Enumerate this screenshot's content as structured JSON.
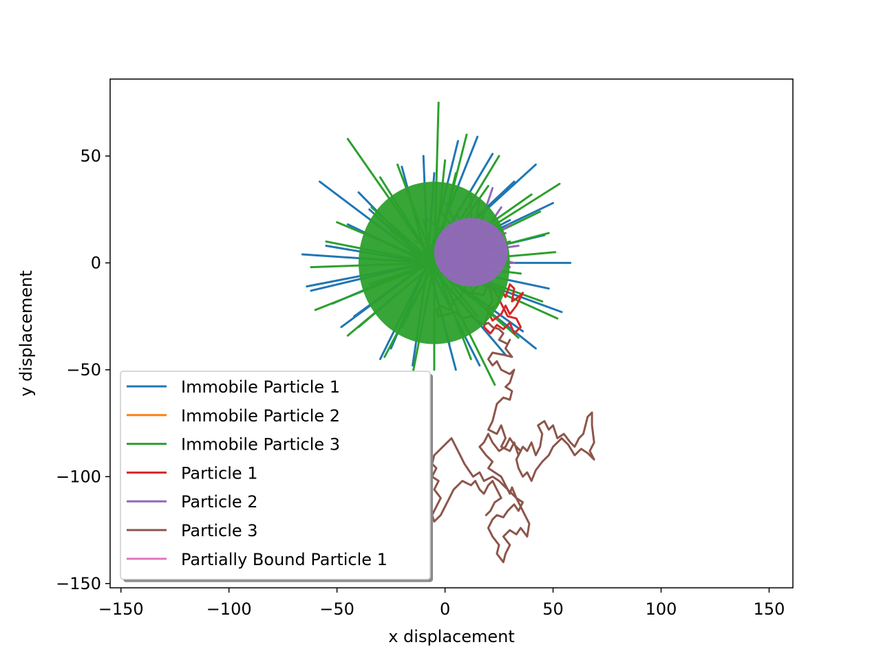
{
  "chart_data": {
    "type": "line",
    "title": "",
    "xlabel": "x displacement",
    "ylabel": "y displacement",
    "xlim": [
      -155,
      161
    ],
    "ylim": [
      -152,
      86
    ],
    "xticks": [
      -150,
      -100,
      -50,
      0,
      50,
      100,
      150
    ],
    "yticks": [
      50,
      0,
      -50,
      -100,
      -150
    ],
    "xtick_labels": [
      "−150",
      "−100",
      "−50",
      "0",
      "50",
      "100",
      "150"
    ],
    "ytick_labels": [
      "50",
      "0",
      "−50",
      "−100",
      "−150"
    ],
    "legend_position": "lower-left",
    "grid": false,
    "series": [
      {
        "name": "Immobile Particle 1",
        "color": "#1f77b4",
        "style": "spikes",
        "center": [
          -8,
          0
        ],
        "tips": [
          [
            -58,
            38
          ],
          [
            -64,
            -11
          ],
          [
            -66,
            4
          ],
          [
            -62,
            -13
          ],
          [
            -35,
            25
          ],
          [
            -45,
            18
          ],
          [
            6,
            57
          ],
          [
            15,
            59
          ],
          [
            42,
            46
          ],
          [
            50,
            28
          ],
          [
            58,
            0
          ],
          [
            54,
            -23
          ],
          [
            42,
            -40
          ],
          [
            28,
            -43
          ],
          [
            5,
            -50
          ],
          [
            -15,
            -48
          ],
          [
            -30,
            -45
          ],
          [
            -48,
            -30
          ],
          [
            -52,
            -19
          ],
          [
            -40,
            33
          ],
          [
            -20,
            45
          ],
          [
            22,
            51
          ],
          [
            32,
            38
          ],
          [
            46,
            13
          ],
          [
            36,
            -32
          ],
          [
            -10,
            50
          ],
          [
            -55,
            8
          ],
          [
            -25,
            -40
          ],
          [
            16,
            -48
          ],
          [
            48,
            -12
          ],
          [
            -5,
            42
          ],
          [
            30,
            20
          ],
          [
            -42,
            -25
          ],
          [
            2,
            -38
          ]
        ]
      },
      {
        "name": "Immobile Particle 2",
        "color": "#ff7f0e",
        "style": "line",
        "points": [
          [
            1,
            7
          ],
          [
            1,
            7
          ]
        ]
      },
      {
        "name": "Immobile Particle 3",
        "color": "#2ca02c",
        "style": "spikes",
        "center": [
          -5,
          0
        ],
        "tips": [
          [
            -3,
            75
          ],
          [
            -45,
            58
          ],
          [
            53,
            37
          ],
          [
            44,
            24
          ],
          [
            52,
            -26
          ],
          [
            34,
            -35
          ],
          [
            23,
            -57
          ],
          [
            -5,
            -50
          ],
          [
            -28,
            -44
          ],
          [
            -45,
            -34
          ],
          [
            -60,
            -22
          ],
          [
            -62,
            -2
          ],
          [
            -50,
            19
          ],
          [
            -34,
            26
          ],
          [
            -22,
            46
          ],
          [
            10,
            60
          ],
          [
            25,
            50
          ],
          [
            40,
            32
          ],
          [
            48,
            14
          ],
          [
            51,
            5
          ],
          [
            45,
            -18
          ],
          [
            12,
            -45
          ],
          [
            -15,
            -52
          ],
          [
            -40,
            -30
          ],
          [
            -55,
            10
          ],
          [
            -30,
            40
          ],
          [
            0,
            48
          ],
          [
            20,
            36
          ],
          [
            35,
            -5
          ],
          [
            -20,
            -30
          ],
          [
            15,
            -25
          ],
          [
            -10,
            20
          ],
          [
            30,
            10
          ],
          [
            -35,
            -10
          ],
          [
            5,
            42
          ],
          [
            -25,
            15
          ],
          [
            28,
            -30
          ]
        ]
      },
      {
        "name": "Particle 1",
        "color": "#d62728",
        "style": "line",
        "points": [
          [
            10,
            3
          ],
          [
            12,
            -5
          ],
          [
            14,
            -2
          ],
          [
            16,
            -10
          ],
          [
            12,
            -14
          ],
          [
            18,
            -15
          ],
          [
            20,
            -9
          ],
          [
            22,
            -18
          ],
          [
            19,
            -22
          ],
          [
            24,
            -20
          ],
          [
            26,
            -13
          ],
          [
            28,
            -16
          ],
          [
            30,
            -10
          ],
          [
            32,
            -12
          ],
          [
            31,
            -18
          ],
          [
            34,
            -16
          ],
          [
            36,
            -14
          ],
          [
            33,
            -20
          ],
          [
            30,
            -24
          ],
          [
            28,
            -20
          ],
          [
            26,
            -24
          ],
          [
            22,
            -27
          ],
          [
            20,
            -23
          ],
          [
            18,
            -30
          ],
          [
            21,
            -33
          ],
          [
            24,
            -29
          ],
          [
            27,
            -31
          ],
          [
            30,
            -28
          ],
          [
            32,
            -33
          ],
          [
            35,
            -30
          ],
          [
            33,
            -26
          ],
          [
            29,
            -25
          ],
          [
            27,
            -21
          ],
          [
            24,
            -15
          ],
          [
            22,
            -11
          ],
          [
            19,
            -7
          ],
          [
            16,
            -4
          ],
          [
            14,
            1
          ],
          [
            11,
            5
          ]
        ]
      },
      {
        "name": "Particle 2",
        "color": "#9467bd",
        "style": "spikes",
        "center": [
          12,
          5
        ],
        "tips": [
          [
            22,
            35
          ],
          [
            12,
            32
          ],
          [
            0,
            28
          ],
          [
            -8,
            20
          ],
          [
            -14,
            10
          ],
          [
            -12,
            0
          ],
          [
            -6,
            -8
          ],
          [
            2,
            -14
          ],
          [
            12,
            -12
          ],
          [
            22,
            -10
          ],
          [
            30,
            -2
          ],
          [
            34,
            8
          ],
          [
            30,
            18
          ],
          [
            26,
            26
          ],
          [
            18,
            24
          ],
          [
            6,
            22
          ],
          [
            -4,
            14
          ],
          [
            28,
            14
          ],
          [
            20,
            -8
          ],
          [
            -10,
            6
          ],
          [
            16,
            30
          ],
          [
            4,
            -10
          ],
          [
            32,
            0
          ],
          [
            -2,
            24
          ]
        ]
      },
      {
        "name": "Particle 3",
        "color": "#8c564b",
        "style": "line",
        "points": [
          [
            10,
            5
          ],
          [
            11,
            0
          ],
          [
            10,
            -4
          ],
          [
            12,
            -8
          ],
          [
            9,
            -12
          ],
          [
            7,
            -16
          ],
          [
            4,
            -18
          ],
          [
            2,
            -22
          ],
          [
            -2,
            -20
          ],
          [
            -4,
            -22
          ],
          [
            -3,
            -25
          ],
          [
            1,
            -24
          ],
          [
            5,
            -23
          ],
          [
            8,
            -26
          ],
          [
            12,
            -25
          ],
          [
            15,
            -27
          ],
          [
            18,
            -29
          ],
          [
            20,
            -28
          ],
          [
            22,
            -30
          ],
          [
            25,
            -31
          ],
          [
            27,
            -33
          ],
          [
            25,
            -36
          ],
          [
            29,
            -38
          ],
          [
            30,
            -36
          ],
          [
            28,
            -40
          ],
          [
            31,
            -44
          ],
          [
            27,
            -43
          ],
          [
            22,
            -42
          ],
          [
            20,
            -45
          ],
          [
            22,
            -48
          ],
          [
            24,
            -46
          ],
          [
            26,
            -50
          ],
          [
            30,
            -52
          ],
          [
            32,
            -50
          ],
          [
            30,
            -56
          ],
          [
            28,
            -58
          ],
          [
            31,
            -60
          ],
          [
            30,
            -64
          ],
          [
            27,
            -63
          ],
          [
            24,
            -66
          ],
          [
            23,
            -70
          ],
          [
            22,
            -74
          ],
          [
            20,
            -78
          ],
          [
            24,
            -80
          ],
          [
            26,
            -76
          ],
          [
            28,
            -82
          ],
          [
            26,
            -86
          ],
          [
            30,
            -88
          ],
          [
            32,
            -84
          ],
          [
            34,
            -90
          ],
          [
            36,
            -86
          ],
          [
            38,
            -88
          ],
          [
            40,
            -84
          ],
          [
            42,
            -90
          ],
          [
            44,
            -86
          ],
          [
            45,
            -80
          ],
          [
            43,
            -76
          ],
          [
            46,
            -74
          ],
          [
            48,
            -78
          ],
          [
            50,
            -76
          ],
          [
            52,
            -82
          ],
          [
            55,
            -80
          ],
          [
            58,
            -84
          ],
          [
            60,
            -86
          ],
          [
            62,
            -82
          ],
          [
            64,
            -80
          ],
          [
            66,
            -72
          ],
          [
            68,
            -70
          ],
          [
            68,
            -76
          ],
          [
            69,
            -84
          ],
          [
            67,
            -88
          ],
          [
            69,
            -92
          ],
          [
            66,
            -89
          ],
          [
            63,
            -87
          ],
          [
            60,
            -90
          ],
          [
            57,
            -85
          ],
          [
            54,
            -82
          ],
          [
            50,
            -86
          ],
          [
            48,
            -90
          ],
          [
            45,
            -93
          ],
          [
            42,
            -97
          ],
          [
            40,
            -102
          ],
          [
            38,
            -98
          ],
          [
            36,
            -100
          ],
          [
            34,
            -96
          ],
          [
            33,
            -92
          ],
          [
            35,
            -88
          ],
          [
            32,
            -85
          ],
          [
            30,
            -82
          ],
          [
            28,
            -86
          ],
          [
            25,
            -88
          ],
          [
            22,
            -84
          ],
          [
            20,
            -80
          ],
          [
            18,
            -84
          ],
          [
            16,
            -86
          ],
          [
            19,
            -90
          ],
          [
            22,
            -93
          ],
          [
            20,
            -96
          ],
          [
            23,
            -98
          ],
          [
            26,
            -100
          ],
          [
            28,
            -104
          ],
          [
            30,
            -108
          ],
          [
            31,
            -105
          ],
          [
            33,
            -110
          ],
          [
            36,
            -112
          ],
          [
            34,
            -116
          ],
          [
            32,
            -113
          ],
          [
            29,
            -116
          ],
          [
            27,
            -119
          ],
          [
            24,
            -118
          ],
          [
            22,
            -120
          ],
          [
            20,
            -124
          ],
          [
            22,
            -128
          ],
          [
            25,
            -132
          ],
          [
            24,
            -136
          ],
          [
            27,
            -140
          ],
          [
            28,
            -136
          ],
          [
            30,
            -132
          ],
          [
            27,
            -128
          ],
          [
            30,
            -125
          ],
          [
            33,
            -127
          ],
          [
            35,
            -124
          ],
          [
            38,
            -128
          ],
          [
            39,
            -122
          ],
          [
            37,
            -118
          ],
          [
            35,
            -114
          ],
          [
            33,
            -110
          ],
          [
            30,
            -107
          ],
          [
            27,
            -104
          ],
          [
            25,
            -102
          ],
          [
            22,
            -100
          ],
          [
            18,
            -102
          ],
          [
            16,
            -98
          ],
          [
            13,
            -100
          ],
          [
            11,
            -97
          ],
          [
            9,
            -94
          ],
          [
            7,
            -90
          ],
          [
            5,
            -86
          ],
          [
            3,
            -82
          ],
          [
            1,
            -84
          ],
          [
            -1,
            -86
          ],
          [
            -3,
            -88
          ],
          [
            -5,
            -90
          ],
          [
            -6,
            -94
          ],
          [
            -4,
            -96
          ],
          [
            -6,
            -100
          ],
          [
            -3,
            -102
          ],
          [
            -5,
            -106
          ],
          [
            -2,
            -110
          ],
          [
            -4,
            -114
          ],
          [
            -6,
            -118
          ],
          [
            -5,
            -121
          ],
          [
            -2,
            -118
          ],
          [
            0,
            -114
          ],
          [
            2,
            -110
          ],
          [
            4,
            -106
          ],
          [
            6,
            -104
          ],
          [
            8,
            -102
          ],
          [
            12,
            -104
          ],
          [
            14,
            -102
          ],
          [
            16,
            -106
          ],
          [
            18,
            -108
          ],
          [
            20,
            -104
          ],
          [
            22,
            -102
          ],
          [
            24,
            -106
          ],
          [
            26,
            -110
          ],
          [
            23,
            -112
          ],
          [
            21,
            -116
          ],
          [
            19,
            -118
          ]
        ]
      },
      {
        "name": "Partially Bound Particle 1",
        "color": "#e377c2",
        "style": "line",
        "points": [
          [
            10,
            7
          ],
          [
            10.5,
            7.8
          ],
          [
            9.5,
            7.2
          ],
          [
            10,
            7
          ]
        ]
      }
    ]
  }
}
